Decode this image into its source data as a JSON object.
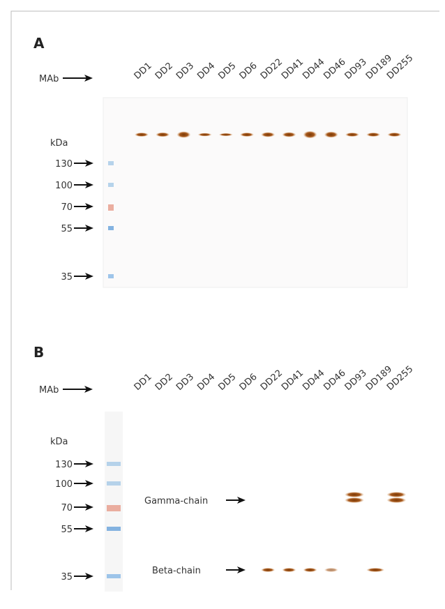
{
  "panels": [
    {
      "label": "A",
      "mab": "MAb",
      "kda": "kDa",
      "lanes": [
        "DD1",
        "DD2",
        "DD3",
        "DD4",
        "DD5",
        "DD6",
        "DD22",
        "DD41",
        "DD44",
        "DD46",
        "DD93",
        "DD189",
        "DD255"
      ],
      "markers": [
        130,
        100,
        70,
        55,
        35
      ]
    },
    {
      "label": "B",
      "mab": "MAb",
      "kda": "kDa",
      "lanes": [
        "DD1",
        "DD2",
        "DD3",
        "DD4",
        "DD5",
        "DD6",
        "DD22",
        "DD41",
        "DD44",
        "DD46",
        "DD93",
        "DD189",
        "DD255"
      ],
      "markers": [
        130,
        100,
        70,
        55,
        35
      ],
      "band_labels": [
        "Gamma-chain",
        "Beta-chain"
      ]
    }
  ]
}
